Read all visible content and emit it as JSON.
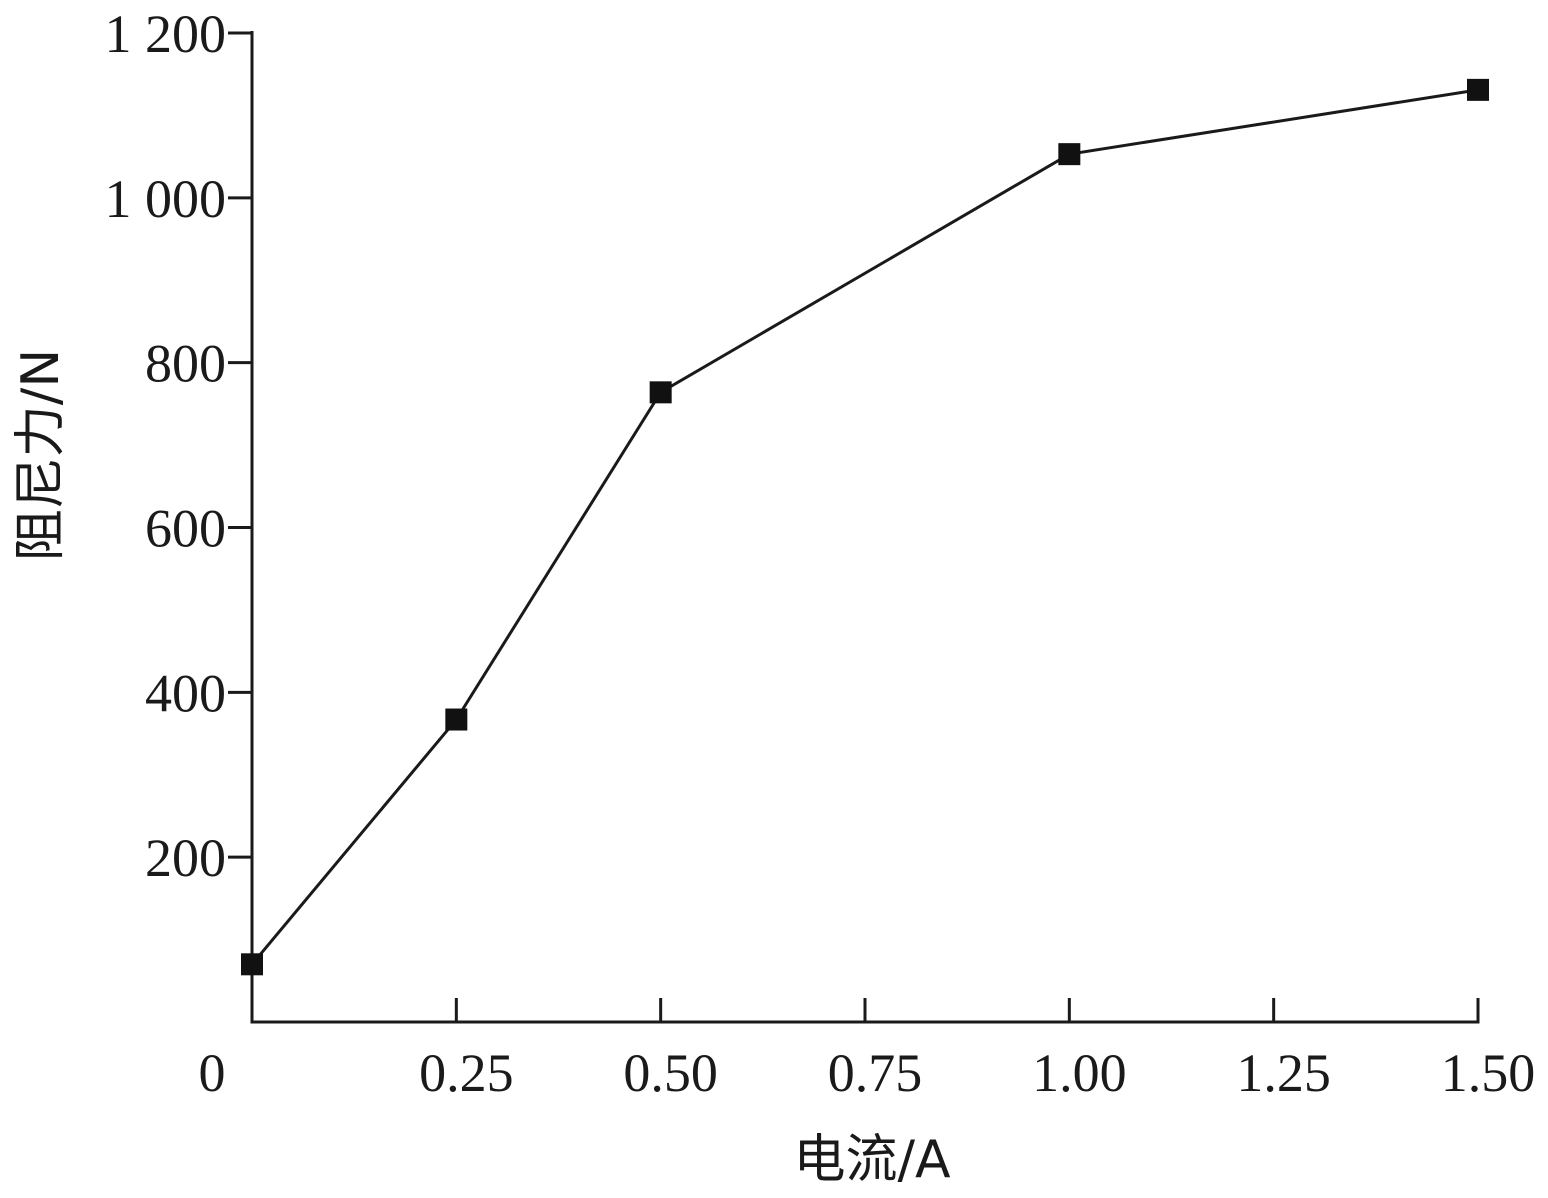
{
  "chart_data": {
    "type": "line",
    "xlabel": "电流/A",
    "ylabel": "阻尼力/N",
    "xlim": [
      0,
      1.5
    ],
    "ylim": [
      0,
      1200
    ],
    "x_ticks": [
      0.25,
      0.5,
      0.75,
      1.0,
      1.25,
      1.5
    ],
    "x_tick_labels": [
      "0.25",
      "0.50",
      "0.75",
      "1.00",
      "1.25",
      "1.50"
    ],
    "y_ticks": [
      200,
      400,
      600,
      800,
      1000,
      1200
    ],
    "y_tick_labels": [
      "200",
      "400",
      "600",
      "800",
      "1 000",
      "1 200"
    ],
    "origin_label": "0",
    "grid": false,
    "marker": "square",
    "series": [
      {
        "x": [
          0,
          0.25,
          0.5,
          1.0,
          1.5
        ],
        "values": [
          70,
          367,
          764,
          1053,
          1131
        ]
      }
    ]
  }
}
